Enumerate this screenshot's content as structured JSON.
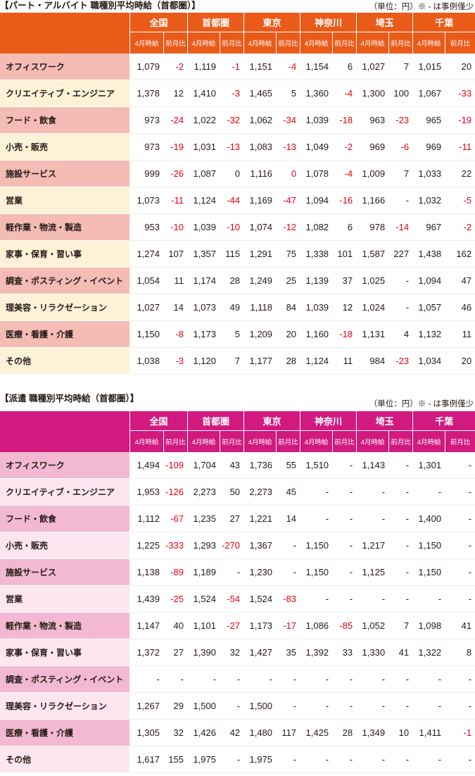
{
  "negative_color": "#e60012",
  "tables": [
    {
      "title": "【パート・アルバイト 職種別平均時給（首都圏）】",
      "note": "（単位：円）※ - は事例僅少",
      "regions": [
        "全国",
        "首都圏",
        "東京",
        "神奈川",
        "埼玉",
        "千葉"
      ],
      "sub_wage": "4月時給",
      "sub_change": "前月比",
      "colors": {
        "header": "#ea5b1a",
        "label_odd": "#f4bcb5",
        "label_even": "#fdf2d8"
      },
      "rows": [
        {
          "label": "オフィスワーク",
          "cells": [
            [
              "1,079",
              "-2"
            ],
            [
              "1,119",
              "-1"
            ],
            [
              "1,151",
              "-4"
            ],
            [
              "1,154",
              "6"
            ],
            [
              "1,027",
              "7"
            ],
            [
              "1,015",
              "20"
            ]
          ]
        },
        {
          "label": "クリエイティブ・エンジニア",
          "cells": [
            [
              "1,378",
              "12"
            ],
            [
              "1,410",
              "-3"
            ],
            [
              "1,465",
              "5"
            ],
            [
              "1,360",
              "-4"
            ],
            [
              "1,300",
              "100"
            ],
            [
              "1,067",
              "-33"
            ]
          ]
        },
        {
          "label": "フード・飲食",
          "cells": [
            [
              "973",
              "-24"
            ],
            [
              "1,022",
              "-32"
            ],
            [
              "1,062",
              "-34"
            ],
            [
              "1,039",
              "-18"
            ],
            [
              "963",
              "-23"
            ],
            [
              "965",
              "-19"
            ]
          ]
        },
        {
          "label": "小売・販売",
          "cells": [
            [
              "973",
              "-19"
            ],
            [
              "1,031",
              "-13"
            ],
            [
              "1,083",
              "-13"
            ],
            [
              "1,049",
              "-2"
            ],
            [
              "969",
              "-6"
            ],
            [
              "969",
              "-11"
            ]
          ]
        },
        {
          "label": "施設サービス",
          "cells": [
            [
              "999",
              "-26"
            ],
            [
              "1,087",
              "0"
            ],
            [
              "1,116",
              "0",
              true
            ],
            [
              "1,078",
              "-4"
            ],
            [
              "1,009",
              "7"
            ],
            [
              "1,033",
              "22"
            ]
          ]
        },
        {
          "label": "営業",
          "cells": [
            [
              "1,073",
              "-11"
            ],
            [
              "1,124",
              "-44"
            ],
            [
              "1,169",
              "-47"
            ],
            [
              "1,094",
              "-16"
            ],
            [
              "1,166",
              "-"
            ],
            [
              "1,032",
              "-5"
            ]
          ]
        },
        {
          "label": "軽作業・物流・製造",
          "cells": [
            [
              "953",
              "-10"
            ],
            [
              "1,039",
              "-10"
            ],
            [
              "1,074",
              "-12"
            ],
            [
              "1,082",
              "6"
            ],
            [
              "978",
              "-14"
            ],
            [
              "967",
              "-2"
            ]
          ]
        },
        {
          "label": "家事・保育・習い事",
          "cells": [
            [
              "1,274",
              "107"
            ],
            [
              "1,357",
              "115"
            ],
            [
              "1,291",
              "75"
            ],
            [
              "1,338",
              "101"
            ],
            [
              "1,587",
              "227"
            ],
            [
              "1,438",
              "162"
            ]
          ]
        },
        {
          "label": "調査・ポスティング・イベント",
          "cells": [
            [
              "1,054",
              "11"
            ],
            [
              "1,174",
              "28"
            ],
            [
              "1,249",
              "25"
            ],
            [
              "1,139",
              "37"
            ],
            [
              "1,025",
              "-"
            ],
            [
              "1,094",
              "47"
            ]
          ]
        },
        {
          "label": "理美容・リラクゼーション",
          "cells": [
            [
              "1,027",
              "14"
            ],
            [
              "1,073",
              "49"
            ],
            [
              "1,118",
              "84"
            ],
            [
              "1,039",
              "12"
            ],
            [
              "1,024",
              "-"
            ],
            [
              "1,057",
              "46"
            ]
          ]
        },
        {
          "label": "医療・看護・介護",
          "cells": [
            [
              "1,150",
              "-8"
            ],
            [
              "1,173",
              "5"
            ],
            [
              "1,209",
              "20"
            ],
            [
              "1,160",
              "-18"
            ],
            [
              "1,131",
              "4"
            ],
            [
              "1,132",
              "11"
            ]
          ]
        },
        {
          "label": "その他",
          "cells": [
            [
              "1,038",
              "-3"
            ],
            [
              "1,120",
              "7"
            ],
            [
              "1,177",
              "28"
            ],
            [
              "1,124",
              "11"
            ],
            [
              "984",
              "-23"
            ],
            [
              "1,034",
              "20"
            ]
          ]
        }
      ]
    },
    {
      "title": "【派遣 職種別平均時給（首都圏）】",
      "note": "（単位：円）※ - は事例僅少",
      "regions": [
        "全国",
        "首都圏",
        "東京",
        "神奈川",
        "埼玉",
        "千葉"
      ],
      "sub_wage": "4月時給",
      "sub_change": "前月比",
      "colors": {
        "header": "#d1197f",
        "label_odd": "#f3b9d2",
        "label_even": "#fde6ef"
      },
      "rows": [
        {
          "label": "オフィスワーク",
          "cells": [
            [
              "1,494",
              "-109"
            ],
            [
              "1,704",
              "43"
            ],
            [
              "1,736",
              "55"
            ],
            [
              "1,510",
              "-"
            ],
            [
              "1,143",
              "-"
            ],
            [
              "1,301",
              "-"
            ]
          ]
        },
        {
          "label": "クリエイティブ・エンジニア",
          "cells": [
            [
              "1,953",
              "-126"
            ],
            [
              "2,273",
              "50"
            ],
            [
              "2,273",
              "45"
            ],
            [
              "-",
              "-"
            ],
            [
              "-",
              "-"
            ],
            [
              "-",
              "-"
            ]
          ]
        },
        {
          "label": "フード・飲食",
          "cells": [
            [
              "1,112",
              "-67"
            ],
            [
              "1,235",
              "27"
            ],
            [
              "1,221",
              "14"
            ],
            [
              "-",
              "-"
            ],
            [
              "-",
              "-"
            ],
            [
              "1,400",
              "-"
            ]
          ]
        },
        {
          "label": "小売・販売",
          "cells": [
            [
              "1,225",
              "-333"
            ],
            [
              "1,293",
              "-270"
            ],
            [
              "1,367",
              "-"
            ],
            [
              "1,150",
              "-"
            ],
            [
              "1,217",
              "-"
            ],
            [
              "1,150",
              "-"
            ]
          ]
        },
        {
          "label": "施設サービス",
          "cells": [
            [
              "1,138",
              "-89"
            ],
            [
              "1,189",
              "-"
            ],
            [
              "1,230",
              "-"
            ],
            [
              "1,150",
              "-"
            ],
            [
              "1,125",
              "-"
            ],
            [
              "1,150",
              "-"
            ]
          ]
        },
        {
          "label": "営業",
          "cells": [
            [
              "1,439",
              "-25"
            ],
            [
              "1,524",
              "-54"
            ],
            [
              "1,524",
              "-83"
            ],
            [
              "-",
              "-"
            ],
            [
              "-",
              "-"
            ],
            [
              "-",
              "-"
            ]
          ]
        },
        {
          "label": "軽作業・物流・製造",
          "cells": [
            [
              "1,147",
              "40"
            ],
            [
              "1,101",
              "-27"
            ],
            [
              "1,173",
              "-17"
            ],
            [
              "1,086",
              "-85"
            ],
            [
              "1,052",
              "7"
            ],
            [
              "1,098",
              "41"
            ]
          ]
        },
        {
          "label": "家事・保育・習い事",
          "cells": [
            [
              "1,372",
              "27"
            ],
            [
              "1,390",
              "32"
            ],
            [
              "1,427",
              "35"
            ],
            [
              "1,392",
              "33"
            ],
            [
              "1,330",
              "41"
            ],
            [
              "1,322",
              "8"
            ]
          ]
        },
        {
          "label": "調査・ポスティング・イベント",
          "cells": [
            [
              "-",
              "-"
            ],
            [
              "-",
              "-"
            ],
            [
              "-",
              "-"
            ],
            [
              "-",
              "-"
            ],
            [
              "-",
              "-"
            ],
            [
              "-",
              "-"
            ]
          ]
        },
        {
          "label": "理美容・リラクゼーション",
          "cells": [
            [
              "1,267",
              "29"
            ],
            [
              "1,500",
              "-"
            ],
            [
              "1,500",
              "-"
            ],
            [
              "-",
              "-"
            ],
            [
              "-",
              "-"
            ],
            [
              "-",
              "-"
            ]
          ]
        },
        {
          "label": "医療・看護・介護",
          "cells": [
            [
              "1,305",
              "32"
            ],
            [
              "1,426",
              "42"
            ],
            [
              "1,480",
              "117"
            ],
            [
              "1,425",
              "28"
            ],
            [
              "1,349",
              "10"
            ],
            [
              "1,411",
              "-1"
            ]
          ]
        },
        {
          "label": "その他",
          "cells": [
            [
              "1,617",
              "155"
            ],
            [
              "1,975",
              "-"
            ],
            [
              "1,975",
              "-"
            ],
            [
              "-",
              "-"
            ],
            [
              "-",
              "-"
            ],
            [
              "-",
              "-"
            ]
          ]
        }
      ]
    }
  ]
}
